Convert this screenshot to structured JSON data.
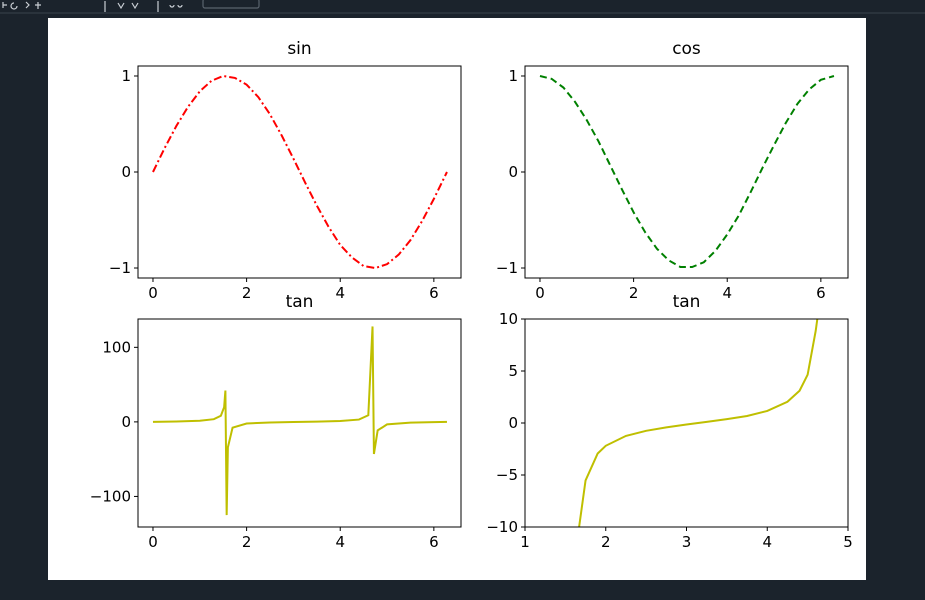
{
  "chart_data": [
    {
      "type": "line",
      "title": "sin",
      "x": [
        0,
        0.25,
        0.5,
        0.75,
        1.0,
        1.25,
        1.5,
        1.75,
        2.0,
        2.25,
        2.5,
        2.75,
        3.0,
        3.25,
        3.5,
        3.75,
        4.0,
        4.25,
        4.5,
        4.75,
        5.0,
        5.25,
        5.5,
        5.75,
        6.0,
        6.28
      ],
      "series": [
        {
          "color": "#ff0000",
          "linestyle": "dashdot",
          "values": [
            0,
            0.25,
            0.48,
            0.68,
            0.84,
            0.95,
            1.0,
            0.98,
            0.91,
            0.78,
            0.6,
            0.38,
            0.14,
            -0.11,
            -0.35,
            -0.57,
            -0.76,
            -0.89,
            -0.98,
            -1.0,
            -0.96,
            -0.86,
            -0.71,
            -0.51,
            -0.28,
            0
          ]
        }
      ],
      "xlim": [
        -0.32,
        6.58
      ],
      "ylim": [
        -1.104,
        1.104
      ],
      "xticks": [
        0,
        2,
        4,
        6
      ],
      "yticks": [
        {
          "value": -1,
          "label": "−1"
        },
        0,
        1
      ]
    },
    {
      "type": "line",
      "title": "cos",
      "x": [
        0,
        0.25,
        0.5,
        0.75,
        1.0,
        1.25,
        1.5,
        1.75,
        2.0,
        2.25,
        2.5,
        2.75,
        3.0,
        3.25,
        3.5,
        3.75,
        4.0,
        4.25,
        4.5,
        4.75,
        5.0,
        5.25,
        5.5,
        5.75,
        6.0,
        6.28
      ],
      "series": [
        {
          "color": "#008000",
          "linestyle": "dashed",
          "values": [
            1,
            0.97,
            0.88,
            0.73,
            0.54,
            0.32,
            0.07,
            -0.18,
            -0.42,
            -0.63,
            -0.8,
            -0.92,
            -0.99,
            -0.99,
            -0.94,
            -0.82,
            -0.65,
            -0.45,
            -0.21,
            0.04,
            0.28,
            0.51,
            0.71,
            0.86,
            0.96,
            1.0
          ]
        }
      ],
      "xlim": [
        -0.32,
        6.58
      ],
      "ylim": [
        -1.104,
        1.104
      ],
      "xticks": [
        0,
        2,
        4,
        6
      ],
      "yticks": [
        {
          "value": -1,
          "label": "−1"
        },
        0,
        1
      ]
    },
    {
      "type": "line",
      "title": "tan",
      "x": [
        0,
        0.5,
        1.0,
        1.3,
        1.45,
        1.52,
        1.547,
        1.574,
        1.6,
        1.7,
        2.0,
        2.5,
        3.0,
        3.5,
        4.0,
        4.4,
        4.6,
        4.69,
        4.72,
        4.8,
        5.0,
        5.5,
        6.0,
        6.28
      ],
      "series": [
        {
          "color": "#bfbf00",
          "linestyle": "solid",
          "values": [
            0,
            0.55,
            1.56,
            3.6,
            8.2,
            19.7,
            42,
            -125,
            -34.2,
            -7.7,
            -2.19,
            -0.75,
            -0.14,
            0.37,
            1.16,
            3.1,
            8.86,
            128,
            -43,
            -11.4,
            -3.38,
            -0.99,
            -0.29,
            0
          ]
        }
      ],
      "xlim": [
        -0.32,
        6.58
      ],
      "ylim": [
        -141,
        138
      ],
      "xticks": [
        0,
        2,
        4,
        6
      ],
      "yticks": [
        {
          "value": -100,
          "label": "−100"
        },
        0,
        100
      ]
    },
    {
      "type": "line",
      "title": "tan",
      "x": [
        1.67,
        1.75,
        1.9,
        2.0,
        2.25,
        2.5,
        2.75,
        3.0,
        3.25,
        3.5,
        3.75,
        4.0,
        4.25,
        4.4,
        4.5,
        4.6,
        4.62
      ],
      "series": [
        {
          "color": "#bfbf00",
          "linestyle": "solid",
          "values": [
            -10,
            -5.52,
            -2.93,
            -2.19,
            -1.24,
            -0.75,
            -0.42,
            -0.14,
            0.11,
            0.37,
            0.67,
            1.16,
            2.04,
            3.1,
            4.64,
            8.86,
            10
          ]
        }
      ],
      "xlim": [
        1,
        5
      ],
      "ylim": [
        -10,
        10
      ],
      "xticks": [
        1,
        2,
        3,
        4,
        5
      ],
      "yticks": [
        {
          "value": -10,
          "label": "−10"
        },
        {
          "value": -5,
          "label": "−5"
        },
        0,
        5,
        10
      ]
    }
  ]
}
